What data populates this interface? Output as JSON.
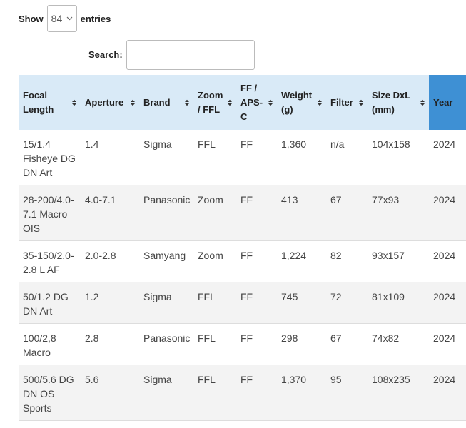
{
  "controls": {
    "show_label": "Show",
    "length_value": "84",
    "entries_label": "entries",
    "search_label": "Search:"
  },
  "table": {
    "headers": [
      "Focal Length",
      "Aperture",
      "Brand",
      "Zoom / FFL",
      "FF / APS-C",
      "Weight (g)",
      "Filter",
      "Size DxL (mm)",
      "Year"
    ],
    "rows": [
      [
        "15/1.4 Fisheye DG DN Art",
        "1.4",
        "Sigma",
        "FFL",
        "FF",
        "1,360",
        "n/a",
        "104x158",
        "2024"
      ],
      [
        "28-200/4.0-7.1 Macro OIS",
        "4.0-7.1",
        "Panasonic",
        "Zoom",
        "FF",
        "413",
        "67",
        "77x93",
        "2024"
      ],
      [
        "35-150/2.0-2.8 L AF",
        "2.0-2.8",
        "Samyang",
        "Zoom",
        "FF",
        "1,224",
        "82",
        "93x157",
        "2024"
      ],
      [
        "50/1.2 DG DN Art",
        "1.2",
        "Sigma",
        "FFL",
        "FF",
        "745",
        "72",
        "81x109",
        "2024"
      ],
      [
        "100/2,8 Macro",
        "2.8",
        "Panasonic",
        "FFL",
        "FF",
        "298",
        "67",
        "74x82",
        "2024"
      ],
      [
        "500/5.6 DG DN OS Sports",
        "5.6",
        "Sigma",
        "FFL",
        "FF",
        "1,370",
        "95",
        "108x235",
        "2024"
      ]
    ]
  }
}
